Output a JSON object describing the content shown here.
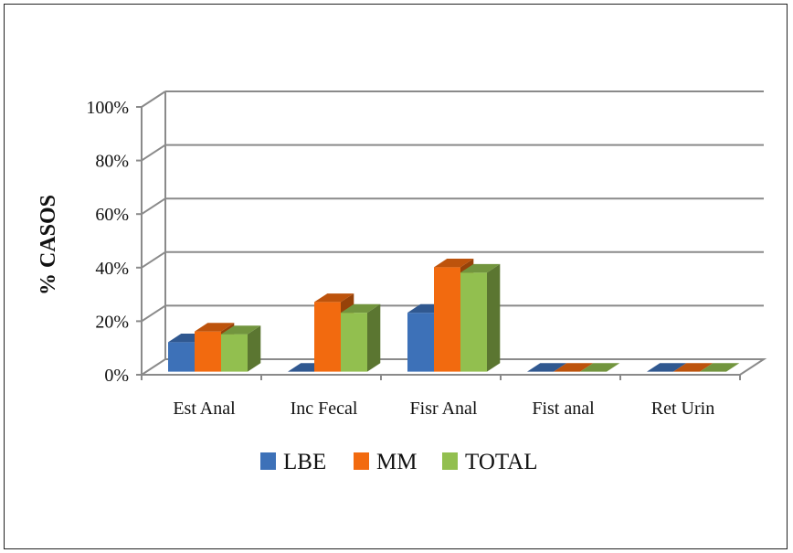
{
  "chart_data": {
    "type": "bar",
    "style": "3d-clustered-column",
    "categories": [
      "Est Anal",
      "Inc Fecal",
      "Fisr Anal",
      "Fist anal",
      "Ret Urin"
    ],
    "series": [
      {
        "name": "LBE",
        "values": [
          11,
          0,
          22,
          0,
          0
        ],
        "color": "#3d71b8"
      },
      {
        "name": "MM",
        "values": [
          15,
          26,
          39,
          0,
          0
        ],
        "color": "#f26a0f"
      },
      {
        "name": "TOTAL",
        "values": [
          14,
          22,
          37,
          0,
          0
        ],
        "color": "#92bf4f"
      }
    ],
    "ylabel": "% CASOS",
    "xlabel": "",
    "yticks": [
      "0%",
      "20%",
      "40%",
      "60%",
      "80%",
      "100%"
    ],
    "ylim": [
      0,
      100
    ],
    "grid": true,
    "legend": "bottom"
  }
}
